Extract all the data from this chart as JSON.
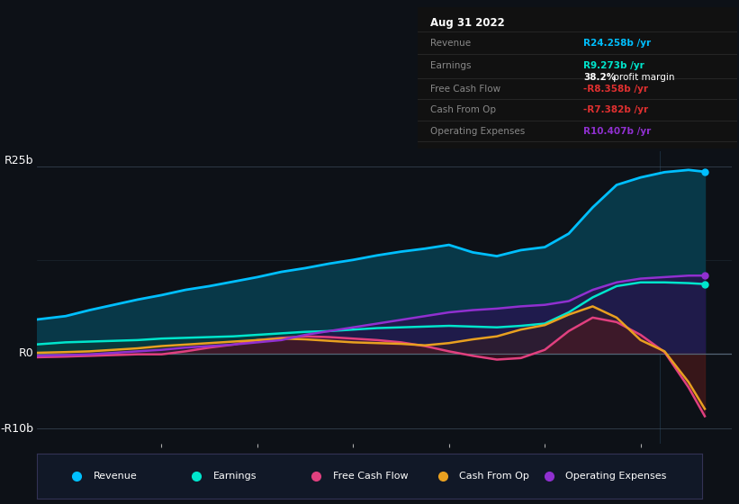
{
  "background_color": "#0d1117",
  "plot_bg_color": "#0d1117",
  "ylim": [
    -12,
    27
  ],
  "xlim": [
    2015.7,
    2022.95
  ],
  "x_ticks": [
    2017,
    2018,
    2019,
    2020,
    2021,
    2022
  ],
  "colors": {
    "revenue": "#00bfff",
    "earnings": "#00e5cc",
    "free_cash_flow": "#e0407f",
    "cash_from_op": "#e8a020",
    "operating_expenses": "#9030d0"
  },
  "series": {
    "years": [
      2015.67,
      2016.0,
      2016.25,
      2016.5,
      2016.75,
      2017.0,
      2017.25,
      2017.5,
      2017.75,
      2018.0,
      2018.25,
      2018.5,
      2018.75,
      2019.0,
      2019.25,
      2019.5,
      2019.75,
      2020.0,
      2020.25,
      2020.5,
      2020.75,
      2021.0,
      2021.25,
      2021.5,
      2021.75,
      2022.0,
      2022.25,
      2022.5,
      2022.67
    ],
    "revenue": [
      4.5,
      5.0,
      5.8,
      6.5,
      7.2,
      7.8,
      8.5,
      9.0,
      9.6,
      10.2,
      10.9,
      11.4,
      12.0,
      12.5,
      13.1,
      13.6,
      14.0,
      14.5,
      13.5,
      13.0,
      13.8,
      14.2,
      16.0,
      19.5,
      22.5,
      23.5,
      24.2,
      24.5,
      24.258
    ],
    "earnings": [
      1.2,
      1.5,
      1.6,
      1.7,
      1.8,
      2.0,
      2.1,
      2.2,
      2.3,
      2.5,
      2.7,
      2.9,
      3.0,
      3.2,
      3.4,
      3.5,
      3.6,
      3.7,
      3.6,
      3.5,
      3.7,
      4.0,
      5.5,
      7.5,
      9.0,
      9.5,
      9.5,
      9.4,
      9.273
    ],
    "free_cash_flow": [
      -0.5,
      -0.4,
      -0.3,
      -0.2,
      -0.1,
      -0.1,
      0.3,
      0.8,
      1.2,
      1.8,
      2.1,
      2.3,
      2.2,
      2.0,
      1.8,
      1.5,
      1.0,
      0.3,
      -0.3,
      -0.8,
      -0.6,
      0.5,
      3.0,
      4.8,
      4.2,
      2.5,
      0.2,
      -4.5,
      -8.358
    ],
    "cash_from_op": [
      0.1,
      0.2,
      0.3,
      0.5,
      0.7,
      1.0,
      1.2,
      1.4,
      1.6,
      1.8,
      2.0,
      1.9,
      1.7,
      1.5,
      1.4,
      1.3,
      1.1,
      1.4,
      1.9,
      2.3,
      3.2,
      3.8,
      5.2,
      6.3,
      4.8,
      1.8,
      0.3,
      -3.8,
      -7.382
    ],
    "operating_expenses": [
      -0.3,
      -0.2,
      -0.1,
      0.1,
      0.3,
      0.5,
      0.8,
      1.0,
      1.2,
      1.5,
      1.8,
      2.5,
      3.0,
      3.5,
      4.0,
      4.5,
      5.0,
      5.5,
      5.8,
      6.0,
      6.3,
      6.5,
      7.0,
      8.5,
      9.5,
      10.0,
      10.2,
      10.4,
      10.407
    ]
  },
  "tooltip": {
    "date": "Aug 31 2022",
    "revenue_label": "Revenue",
    "revenue_val": "R24.258b /yr",
    "revenue_color": "#00bfff",
    "earnings_label": "Earnings",
    "earnings_val": "R9.273b /yr",
    "earnings_color": "#00e5cc",
    "margin_val": "38.2%",
    "margin_suffix": " profit margin",
    "fcf_label": "Free Cash Flow",
    "fcf_val": "-R8.358b /yr",
    "fcf_color": "#e03030",
    "cfo_label": "Cash From Op",
    "cfo_val": "-R7.382b /yr",
    "cfo_color": "#e03030",
    "opex_label": "Operating Expenses",
    "opex_val": "R10.407b /yr",
    "opex_color": "#9030d0"
  },
  "legend": [
    {
      "label": "Revenue",
      "color": "#00bfff"
    },
    {
      "label": "Earnings",
      "color": "#00e5cc"
    },
    {
      "label": "Free Cash Flow",
      "color": "#e0407f"
    },
    {
      "label": "Cash From Op",
      "color": "#e8a020"
    },
    {
      "label": "Operating Expenses",
      "color": "#9030d0"
    }
  ],
  "ylabel_r25": "R25b",
  "ylabel_r0": "R0",
  "ylabel_r10b": "-R10b"
}
